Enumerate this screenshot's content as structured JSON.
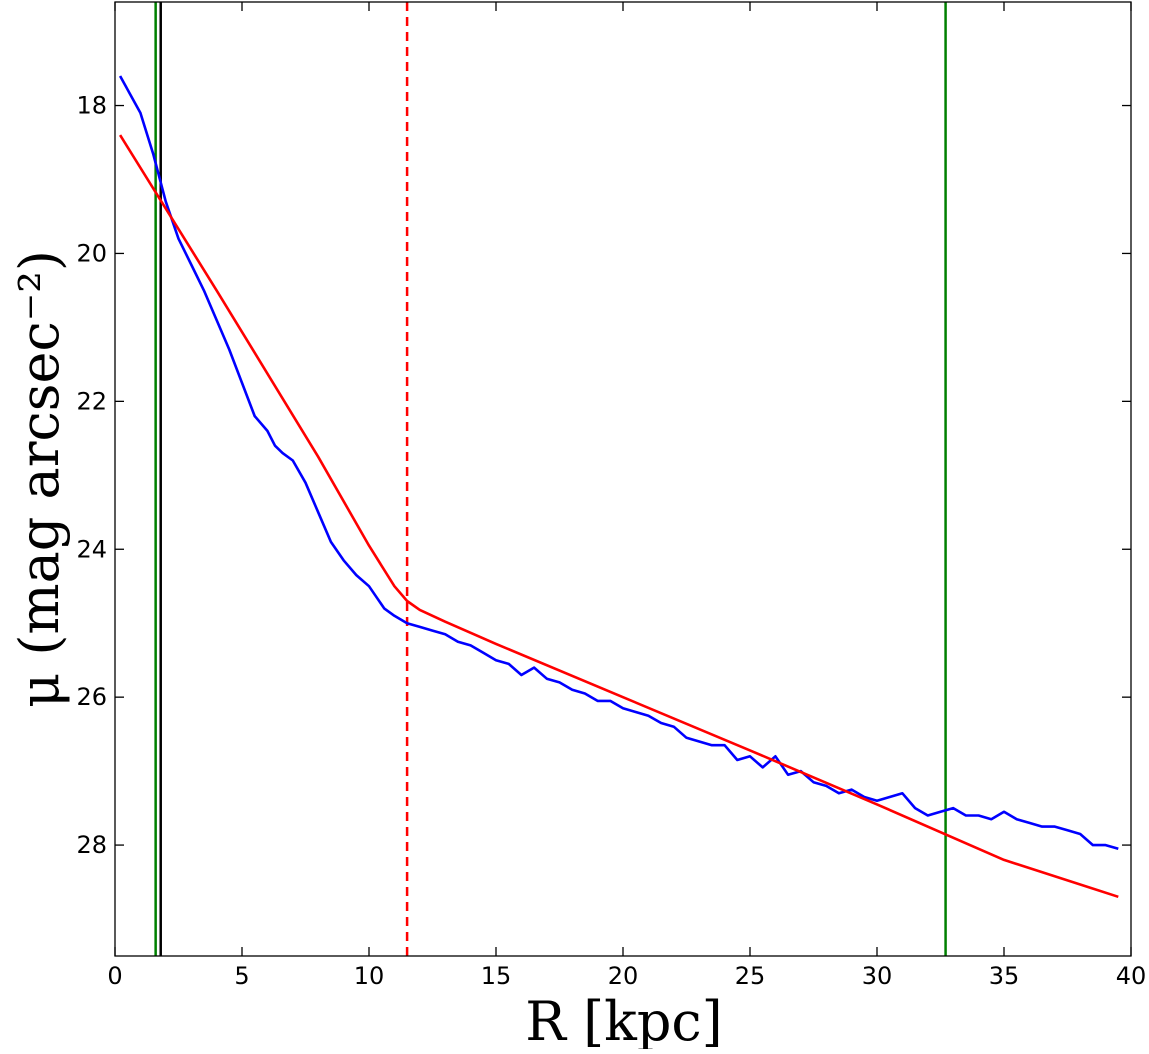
{
  "chart_data": {
    "type": "line",
    "title": "",
    "xlabel": "R [kpc]",
    "ylabel": "μ (mag arcsec⁻²)",
    "xlim": [
      0,
      40
    ],
    "ylim": [
      29.5,
      16.6
    ],
    "y_inverted": true,
    "grid": false,
    "x_ticks": [
      0,
      5,
      10,
      15,
      20,
      25,
      30,
      35,
      40
    ],
    "y_ticks": [
      18,
      20,
      22,
      24,
      26,
      28
    ],
    "series": [
      {
        "color": "#0000ff",
        "x": [
          0.2,
          1.0,
          1.5,
          2.0,
          2.5,
          3.0,
          3.5,
          4.0,
          4.5,
          5.0,
          5.5,
          6.0,
          6.3,
          6.6,
          7.0,
          7.5,
          8.0,
          8.5,
          9.0,
          9.5,
          10.0,
          10.3,
          10.6,
          11.0,
          11.5,
          12.0,
          12.5,
          13.0,
          13.5,
          14.0,
          14.5,
          15.0,
          15.5,
          16.0,
          16.5,
          17.0,
          17.5,
          18.0,
          18.5,
          19.0,
          19.5,
          20.0,
          20.5,
          21.0,
          21.5,
          22.0,
          22.5,
          23.0,
          23.5,
          24.0,
          24.5,
          25.0,
          25.5,
          26.0,
          26.5,
          27.0,
          27.5,
          28.0,
          28.5,
          29.0,
          29.5,
          30.0,
          30.5,
          31.0,
          31.5,
          32.0,
          32.5,
          33.0,
          33.5,
          34.0,
          34.5,
          35.0,
          35.5,
          36.0,
          36.5,
          37.0,
          37.5,
          38.0,
          38.5,
          39.0,
          39.5
        ],
        "y": [
          17.6,
          18.1,
          18.65,
          19.3,
          19.8,
          20.15,
          20.5,
          20.9,
          21.3,
          21.75,
          22.2,
          22.4,
          22.6,
          22.7,
          22.8,
          23.1,
          23.5,
          23.9,
          24.15,
          24.35,
          24.5,
          24.65,
          24.8,
          24.9,
          25.0,
          25.05,
          25.1,
          25.15,
          25.25,
          25.3,
          25.4,
          25.5,
          25.55,
          25.7,
          25.6,
          25.75,
          25.8,
          25.9,
          25.95,
          26.05,
          26.05,
          26.15,
          26.2,
          26.25,
          26.35,
          26.4,
          26.55,
          26.6,
          26.65,
          26.65,
          26.85,
          26.8,
          26.95,
          26.8,
          27.05,
          27.0,
          27.15,
          27.2,
          27.3,
          27.25,
          27.35,
          27.4,
          27.35,
          27.3,
          27.5,
          27.6,
          27.55,
          27.5,
          27.6,
          27.6,
          27.65,
          27.55,
          27.65,
          27.7,
          27.75,
          27.75,
          27.8,
          27.85,
          28.0,
          28.0,
          28.05
        ]
      },
      {
        "color": "#ff0000",
        "x": [
          0.2,
          4.0,
          8.0,
          10.0,
          11.0,
          11.5,
          12.0,
          13.0,
          15.0,
          20.0,
          25.0,
          30.0,
          35.0,
          39.5
        ],
        "y": [
          18.4,
          20.5,
          22.75,
          23.95,
          24.5,
          24.7,
          24.82,
          24.98,
          25.28,
          26.0,
          26.72,
          27.45,
          28.2,
          28.7
        ]
      }
    ],
    "vlines": [
      {
        "x": 1.6,
        "color": "#008000",
        "style": "solid"
      },
      {
        "x": 1.8,
        "color": "#000000",
        "style": "solid"
      },
      {
        "x": 11.5,
        "color": "#ff0000",
        "style": "dashed"
      },
      {
        "x": 32.7,
        "color": "#008000",
        "style": "solid"
      }
    ]
  }
}
